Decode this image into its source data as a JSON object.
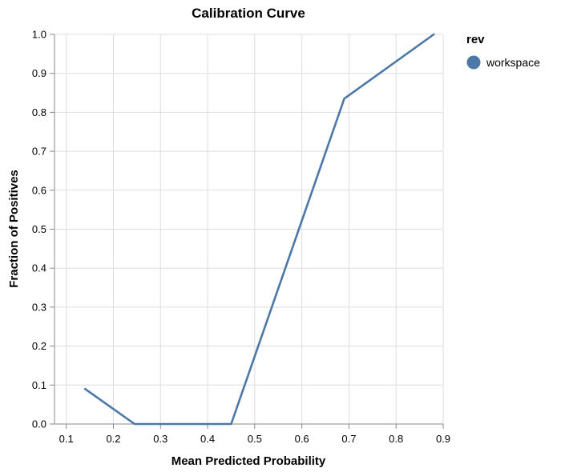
{
  "chart_data": {
    "type": "line",
    "title": "Calibration Curve",
    "xlabel": "Mean Predicted Probability",
    "ylabel": "Fraction of Positives",
    "xlim": [
      0.075,
      0.9
    ],
    "ylim": [
      0.0,
      1.0
    ],
    "x_ticks": [
      "0.1",
      "0.2",
      "0.3",
      "0.4",
      "0.5",
      "0.6",
      "0.7",
      "0.8",
      "0.9"
    ],
    "y_ticks": [
      "0.0",
      "0.1",
      "0.2",
      "0.3",
      "0.4",
      "0.5",
      "0.6",
      "0.7",
      "0.8",
      "0.9",
      "1.0"
    ],
    "grid": true,
    "legend": {
      "title": "rev",
      "placement": "right"
    },
    "series": [
      {
        "name": "workspace",
        "color": "#4c78a8",
        "x": [
          0.14,
          0.245,
          0.45,
          0.69,
          0.88
        ],
        "y": [
          0.09,
          0.0,
          0.0,
          0.835,
          1.0
        ]
      }
    ]
  }
}
